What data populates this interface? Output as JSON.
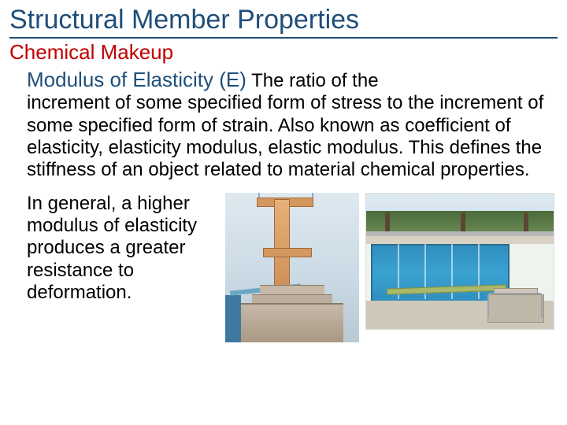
{
  "colors": {
    "title": "#1f4e79",
    "title_rule": "#1f4e79",
    "subtitle": "#c00000",
    "term": "#1f4e79",
    "body": "#000000",
    "background": "#ffffff"
  },
  "title": "Structural Member Properties",
  "subtitle": "Chemical Makeup",
  "term": "Modulus of Elasticity (E)",
  "definition_lead": " The ratio of the ",
  "definition_rest": "increment of some specified form of stress to the increment of some specified form of strain. Also known as coefficient of elasticity, elasticity modulus, elastic modulus. This defines the stiffness of an object related to material chemical properties.",
  "paragraph2": "In general, a higher modulus of elasticity produces a greater resistance to deformation.",
  "images": {
    "left_alt": "Concrete diving tower with multiple platforms beside a pool",
    "right_alt": "Outdoor swimming pool with a springboard diving board in the foreground"
  }
}
